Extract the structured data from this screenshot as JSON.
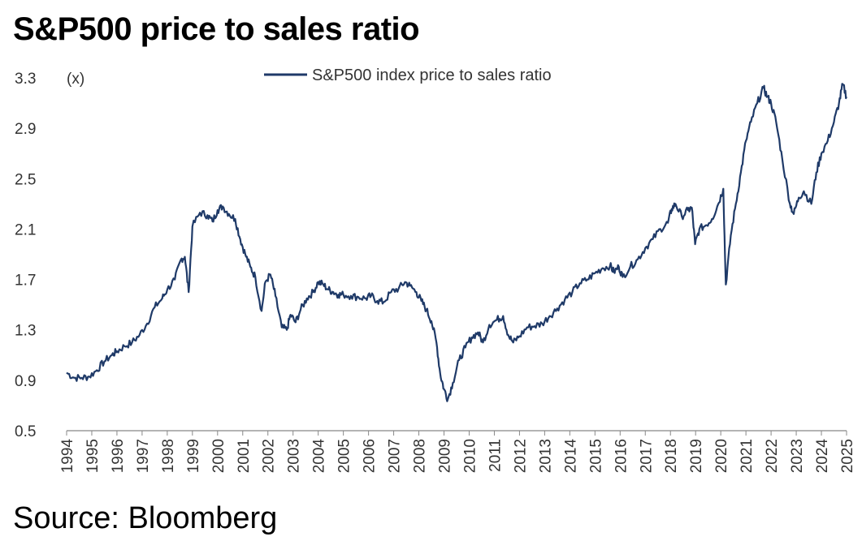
{
  "title": "S&P500 price to sales ratio",
  "source": "Source: Bloomberg",
  "chart_data": {
    "type": "line",
    "title": "S&P500 price to sales ratio",
    "ylabel": "(x)",
    "xlabel": "",
    "ylim": [
      0.5,
      3.3
    ],
    "yticks": [
      0.5,
      0.9,
      1.3,
      1.7,
      2.1,
      2.5,
      2.9,
      3.3
    ],
    "ytick_labels": [
      "0.5",
      "0.9",
      "1.3",
      "1.7",
      "2.1",
      "2.5",
      "2.9",
      "3.3"
    ],
    "xlim": [
      1994,
      2025
    ],
    "xticks": [
      1994,
      1995,
      1996,
      1997,
      1998,
      1999,
      2000,
      2001,
      2002,
      2003,
      2004,
      2005,
      2006,
      2007,
      2008,
      2009,
      2010,
      2011,
      2012,
      2013,
      2014,
      2015,
      2016,
      2017,
      2018,
      2019,
      2020,
      2021,
      2022,
      2023,
      2024,
      2025
    ],
    "xtick_labels": [
      "1994",
      "1995",
      "1996",
      "1997",
      "1998",
      "1999",
      "2000",
      "2001",
      "2002",
      "2003",
      "2004",
      "2005",
      "2006",
      "2007",
      "2008",
      "2009",
      "2010",
      "2011",
      "2012",
      "2013",
      "2014",
      "2015",
      "2016",
      "2017",
      "2018",
      "2019",
      "2020",
      "2021",
      "2022",
      "2023",
      "2024",
      "2025"
    ],
    "grid": false,
    "legend": "top-center",
    "color": "#1f3a68",
    "series": [
      {
        "name": "S&P500 index price to sales ratio",
        "x": [
          1994.0,
          1994.3,
          1994.6,
          1994.9,
          1995.2,
          1995.5,
          1995.8,
          1996.0,
          1996.3,
          1996.6,
          1996.9,
          1997.2,
          1997.5,
          1997.8,
          1998.0,
          1998.3,
          1998.55,
          1998.7,
          1998.85,
          1999.0,
          1999.3,
          1999.6,
          1999.8,
          2000.0,
          2000.2,
          2000.45,
          2000.7,
          2000.9,
          2001.1,
          2001.3,
          2001.5,
          2001.75,
          2001.9,
          2002.1,
          2002.3,
          2002.55,
          2002.75,
          2002.9,
          2003.1,
          2003.3,
          2003.55,
          2003.8,
          2004.0,
          2004.2,
          2004.4,
          2004.6,
          2004.8,
          2005.0,
          2005.3,
          2005.6,
          2005.9,
          2006.1,
          2006.35,
          2006.6,
          2006.9,
          2007.2,
          2007.45,
          2007.65,
          2007.9,
          2008.1,
          2008.3,
          2008.5,
          2008.7,
          2008.85,
          2009.0,
          2009.15,
          2009.35,
          2009.6,
          2009.85,
          2010.1,
          2010.35,
          2010.55,
          2010.8,
          2011.1,
          2011.35,
          2011.55,
          2011.75,
          2012.0,
          2012.3,
          2012.6,
          2012.9,
          2013.2,
          2013.5,
          2013.8,
          2014.1,
          2014.4,
          2014.7,
          2015.0,
          2015.3,
          2015.6,
          2015.75,
          2015.95,
          2016.1,
          2016.4,
          2016.7,
          2017.0,
          2017.3,
          2017.6,
          2017.9,
          2018.05,
          2018.2,
          2018.45,
          2018.7,
          2018.85,
          2018.98,
          2019.15,
          2019.4,
          2019.65,
          2019.9,
          2020.1,
          2020.2,
          2020.4,
          2020.6,
          2020.8,
          2021.0,
          2021.2,
          2021.45,
          2021.7,
          2021.85,
          2022.0,
          2022.2,
          2022.45,
          2022.75,
          2022.9,
          2023.1,
          2023.3,
          2023.6,
          2023.8,
          2024.0,
          2024.25,
          2024.5,
          2024.7,
          2024.85,
          2025.0
        ],
        "values": [
          0.96,
          0.92,
          0.92,
          0.93,
          0.98,
          1.05,
          1.1,
          1.13,
          1.17,
          1.2,
          1.26,
          1.35,
          1.48,
          1.55,
          1.62,
          1.7,
          1.86,
          1.88,
          1.6,
          2.12,
          2.23,
          2.21,
          2.16,
          2.25,
          2.28,
          2.22,
          2.18,
          2.02,
          1.9,
          1.8,
          1.72,
          1.45,
          1.68,
          1.74,
          1.57,
          1.32,
          1.3,
          1.42,
          1.36,
          1.46,
          1.55,
          1.6,
          1.68,
          1.66,
          1.62,
          1.6,
          1.58,
          1.58,
          1.57,
          1.56,
          1.55,
          1.57,
          1.53,
          1.52,
          1.6,
          1.63,
          1.68,
          1.65,
          1.6,
          1.53,
          1.46,
          1.37,
          1.2,
          0.95,
          0.83,
          0.75,
          0.88,
          1.06,
          1.16,
          1.24,
          1.28,
          1.2,
          1.34,
          1.38,
          1.41,
          1.26,
          1.2,
          1.25,
          1.32,
          1.33,
          1.35,
          1.41,
          1.47,
          1.54,
          1.6,
          1.67,
          1.7,
          1.75,
          1.79,
          1.81,
          1.76,
          1.8,
          1.72,
          1.8,
          1.86,
          1.95,
          2.02,
          2.1,
          2.15,
          2.26,
          2.3,
          2.2,
          2.25,
          2.27,
          1.98,
          2.1,
          2.13,
          2.18,
          2.3,
          2.42,
          1.66,
          2.05,
          2.3,
          2.55,
          2.8,
          2.95,
          3.1,
          3.22,
          3.15,
          3.1,
          2.95,
          2.65,
          2.3,
          2.22,
          2.35,
          2.4,
          2.3,
          2.55,
          2.7,
          2.8,
          2.95,
          3.1,
          3.25,
          3.15
        ]
      }
    ]
  }
}
